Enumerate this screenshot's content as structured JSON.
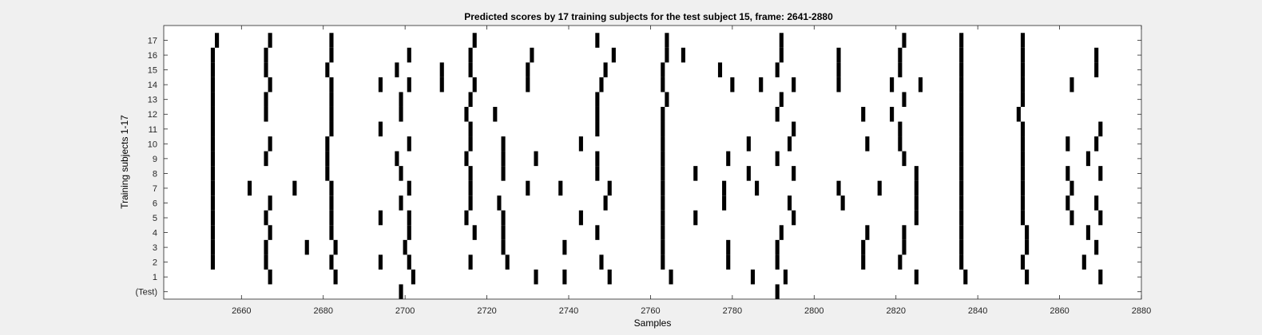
{
  "chart_data": {
    "type": "raster",
    "title": "Predicted scores by 17 training subjects for the test subject 15, frame: 2641-2880",
    "xlabel": "Samples",
    "ylabel": "Training subjects 1-17",
    "xlim": [
      2641,
      2880
    ],
    "x_ticks": [
      2660,
      2680,
      2700,
      2720,
      2740,
      2760,
      2780,
      2800,
      2820,
      2840,
      2860,
      2880
    ],
    "y_tick_labels": [
      "(Test)",
      "1",
      "2",
      "3",
      "4",
      "5",
      "6",
      "7",
      "8",
      "9",
      "10",
      "11",
      "12",
      "13",
      "14",
      "15",
      "16",
      "17"
    ],
    "grid": false,
    "legend": "none",
    "colors": {
      "marks": "#000000",
      "plot_background": "#ffffff",
      "figure_background": "#f0f0f0"
    },
    "rows": [
      {
        "label": "(Test)",
        "x": [
          2699,
          2791
        ]
      },
      {
        "label": "1",
        "x": [
          2667,
          2683,
          2702,
          2732,
          2739,
          2750,
          2765,
          2785,
          2793,
          2825,
          2837,
          2852,
          2870
        ]
      },
      {
        "label": "2",
        "x": [
          2653,
          2666,
          2682,
          2694,
          2701,
          2716,
          2725,
          2748,
          2763,
          2779,
          2791,
          2812,
          2821,
          2836,
          2851,
          2866
        ]
      },
      {
        "label": "3",
        "x": [
          2653,
          2666,
          2676,
          2683,
          2700,
          2724,
          2739,
          2763,
          2779,
          2791,
          2812,
          2822,
          2836,
          2852,
          2869
        ]
      },
      {
        "label": "4",
        "x": [
          2653,
          2667,
          2682,
          2701,
          2717,
          2724,
          2747,
          2763,
          2792,
          2813,
          2822,
          2836,
          2852,
          2867
        ]
      },
      {
        "label": "5",
        "x": [
          2653,
          2666,
          2682,
          2694,
          2701,
          2715,
          2724,
          2743,
          2763,
          2771,
          2795,
          2825,
          2836,
          2851,
          2863,
          2870
        ]
      },
      {
        "label": "6",
        "x": [
          2653,
          2667,
          2682,
          2699,
          2716,
          2723,
          2749,
          2763,
          2778,
          2794,
          2807,
          2825,
          2836,
          2851,
          2862,
          2869
        ]
      },
      {
        "label": "7",
        "x": [
          2653,
          2662,
          2673,
          2682,
          2701,
          2716,
          2730,
          2738,
          2750,
          2763,
          2778,
          2786,
          2806,
          2816,
          2825,
          2836,
          2851,
          2863
        ]
      },
      {
        "label": "8",
        "x": [
          2653,
          2681,
          2699,
          2716,
          2724,
          2747,
          2763,
          2771,
          2784,
          2795,
          2825,
          2836,
          2851,
          2862,
          2870
        ]
      },
      {
        "label": "9",
        "x": [
          2653,
          2666,
          2681,
          2698,
          2715,
          2724,
          2732,
          2747,
          2763,
          2779,
          2791,
          2822,
          2836,
          2851,
          2867
        ]
      },
      {
        "label": "10",
        "x": [
          2653,
          2667,
          2681,
          2701,
          2716,
          2724,
          2743,
          2763,
          2784,
          2794,
          2813,
          2821,
          2836,
          2851,
          2862,
          2869
        ]
      },
      {
        "label": "11",
        "x": [
          2653,
          2682,
          2694,
          2716,
          2747,
          2763,
          2795,
          2821,
          2836,
          2851,
          2870
        ]
      },
      {
        "label": "12",
        "x": [
          2653,
          2666,
          2682,
          2699,
          2715,
          2722,
          2747,
          2763,
          2791,
          2812,
          2819,
          2836,
          2850
        ]
      },
      {
        "label": "13",
        "x": [
          2653,
          2666,
          2682,
          2699,
          2716,
          2747,
          2764,
          2792,
          2822,
          2836,
          2851
        ]
      },
      {
        "label": "14",
        "x": [
          2653,
          2667,
          2682,
          2694,
          2701,
          2709,
          2717,
          2730,
          2748,
          2763,
          2780,
          2787,
          2795,
          2806,
          2819,
          2826,
          2836,
          2851,
          2863
        ]
      },
      {
        "label": "15",
        "x": [
          2653,
          2666,
          2681,
          2698,
          2709,
          2716,
          2730,
          2749,
          2763,
          2777,
          2791,
          2806,
          2821,
          2836,
          2851,
          2869
        ]
      },
      {
        "label": "16",
        "x": [
          2653,
          2666,
          2682,
          2701,
          2716,
          2731,
          2751,
          2764,
          2768,
          2792,
          2806,
          2821,
          2836,
          2851,
          2869
        ]
      },
      {
        "label": "17",
        "x": [
          2654,
          2667,
          2682,
          2717,
          2747,
          2764,
          2792,
          2822,
          2836,
          2851
        ]
      }
    ]
  }
}
